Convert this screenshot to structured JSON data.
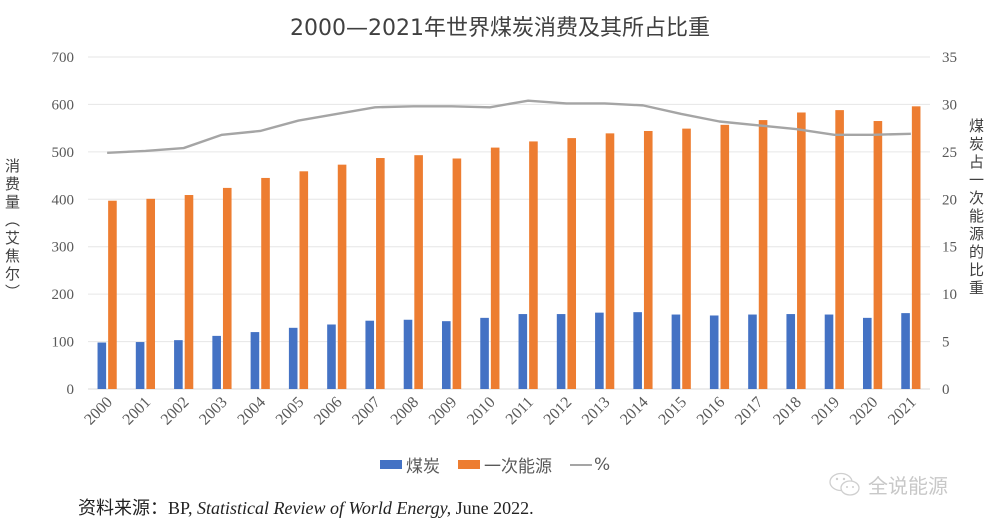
{
  "chart_data": {
    "type": "bar",
    "title": "2000—2021年世界煤炭消费及其所占比重",
    "xlabel": "",
    "ylabel": "消费量（艾焦尔）",
    "ylabel_right": "煤炭占一次能源的比重",
    "ylim": [
      0,
      700
    ],
    "yticks": [
      0,
      100,
      200,
      300,
      400,
      500,
      600,
      700
    ],
    "ylim_right": [
      0,
      35
    ],
    "yticks_right": [
      0,
      5,
      10,
      15,
      20,
      25,
      30,
      35
    ],
    "grid": true,
    "legend_position": "bottom",
    "categories": [
      "2000",
      "2001",
      "2002",
      "2003",
      "2004",
      "2005",
      "2006",
      "2007",
      "2008",
      "2009",
      "2010",
      "2011",
      "2012",
      "2013",
      "2014",
      "2015",
      "2016",
      "2017",
      "2018",
      "2019",
      "2020",
      "2021"
    ],
    "series": [
      {
        "name": "煤炭",
        "type": "bar",
        "axis": "left",
        "color": "#4472C4",
        "values": [
          98,
          99,
          103,
          112,
          120,
          129,
          136,
          144,
          146,
          143,
          150,
          158,
          158,
          161,
          162,
          157,
          155,
          157,
          158,
          157,
          150,
          160
        ]
      },
      {
        "name": "一次能源",
        "type": "bar",
        "axis": "left",
        "color": "#ED7D31",
        "values": [
          397,
          401,
          409,
          424,
          445,
          459,
          473,
          487,
          493,
          486,
          509,
          522,
          529,
          539,
          544,
          549,
          557,
          567,
          583,
          588,
          565,
          596
        ]
      },
      {
        "name": "%",
        "type": "line",
        "axis": "right",
        "color": "#A5A5A5",
        "values": [
          24.9,
          25.1,
          25.4,
          26.8,
          27.2,
          28.3,
          29.0,
          29.7,
          29.8,
          29.8,
          29.7,
          30.4,
          30.1,
          30.1,
          29.9,
          29.0,
          28.2,
          27.8,
          27.4,
          26.8,
          26.8,
          26.9
        ]
      }
    ]
  },
  "source": {
    "prefix": "资料来源：BP, ",
    "italic": "Statistical Review of World Energy,",
    "suffix": " June 2022."
  },
  "watermark": "全说能源"
}
